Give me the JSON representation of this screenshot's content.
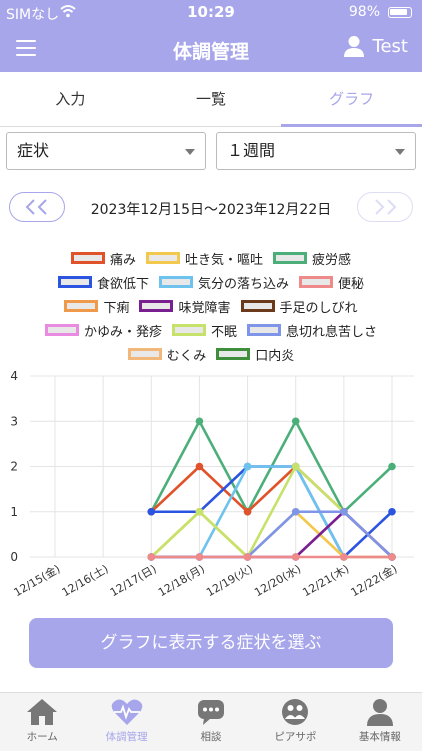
{
  "status": {
    "carrier": "SIMなし",
    "time": "10:29",
    "battery": "98%"
  },
  "header": {
    "title": "体調管理",
    "user": "Test"
  },
  "tabs": [
    {
      "label": "入力"
    },
    {
      "label": "一覧"
    },
    {
      "label": "グラフ"
    }
  ],
  "filters": {
    "symptom": "症状",
    "period": "１週間"
  },
  "range": {
    "text": "2023年12月15日〜2023年12月22日"
  },
  "legend": [
    {
      "label": "痛み",
      "color": "#e0532a"
    },
    {
      "label": "吐き気・嘔吐",
      "color": "#f2c94c"
    },
    {
      "label": "疲労感",
      "color": "#4caf7a"
    },
    {
      "label": "食欲低下",
      "color": "#2b54e0"
    },
    {
      "label": "気分の落ち込み",
      "color": "#6ec3ee"
    },
    {
      "label": "便秘",
      "color": "#ef8a8a"
    },
    {
      "label": "下痢",
      "color": "#ef9a4a"
    },
    {
      "label": "味覚障害",
      "color": "#7a1f8f"
    },
    {
      "label": "手足のしびれ",
      "color": "#6b3a1a"
    },
    {
      "label": "かゆみ・発疹",
      "color": "#e98be0"
    },
    {
      "label": "不眠",
      "color": "#c6e26a"
    },
    {
      "label": "息切れ息苦しさ",
      "color": "#7f95e8"
    },
    {
      "label": "むくみ",
      "color": "#f2b87a"
    },
    {
      "label": "口内炎",
      "color": "#3f8f3a"
    }
  ],
  "chart_data": {
    "type": "line",
    "categories": [
      "12/15(金)",
      "12/16(土)",
      "12/17(日)",
      "12/18(月)",
      "12/19(火)",
      "12/20(水)",
      "12/21(木)",
      "12/22(金)"
    ],
    "ylim": [
      0,
      4
    ],
    "yticks": [
      "0",
      "1",
      "2",
      "3",
      "4"
    ],
    "series": [
      {
        "name": "疲労感",
        "color": "#4caf7a",
        "values": [
          null,
          null,
          1,
          3,
          1,
          3,
          1,
          2
        ]
      },
      {
        "name": "痛み",
        "color": "#e0532a",
        "values": [
          null,
          null,
          1,
          2,
          1,
          2,
          1,
          0
        ]
      },
      {
        "name": "食欲低下",
        "color": "#2b54e0",
        "values": [
          null,
          null,
          1,
          1,
          2,
          2,
          0,
          1
        ]
      },
      {
        "name": "気分の落ち込み",
        "color": "#6ec3ee",
        "values": [
          null,
          null,
          0,
          0,
          2,
          2,
          0,
          0
        ]
      },
      {
        "name": "吐き気・嘔吐",
        "color": "#f2c94c",
        "values": [
          null,
          null,
          0,
          1,
          0,
          1,
          0,
          0
        ]
      },
      {
        "name": "不眠",
        "color": "#c6e26a",
        "values": [
          null,
          null,
          0,
          1,
          0,
          2,
          1,
          0
        ]
      },
      {
        "name": "味覚障害",
        "color": "#7a1f8f",
        "values": [
          null,
          null,
          0,
          0,
          0,
          0,
          1,
          0
        ]
      },
      {
        "name": "息切れ息苦しさ",
        "color": "#7f95e8",
        "values": [
          null,
          null,
          0,
          0,
          0,
          1,
          1,
          0
        ]
      },
      {
        "name": "便秘",
        "color": "#ef8a8a",
        "values": [
          null,
          null,
          0,
          0,
          0,
          0,
          0,
          0
        ]
      }
    ]
  },
  "cta": {
    "label": "グラフに表示する症状を選ぶ"
  },
  "bottom_nav": [
    {
      "label": "ホーム",
      "icon": "home-icon"
    },
    {
      "label": "体調管理",
      "icon": "heart-pulse-icon"
    },
    {
      "label": "相談",
      "icon": "chat-icon"
    },
    {
      "label": "ピアサポ",
      "icon": "peer-support-icon"
    },
    {
      "label": "基本情報",
      "icon": "person-icon"
    }
  ]
}
